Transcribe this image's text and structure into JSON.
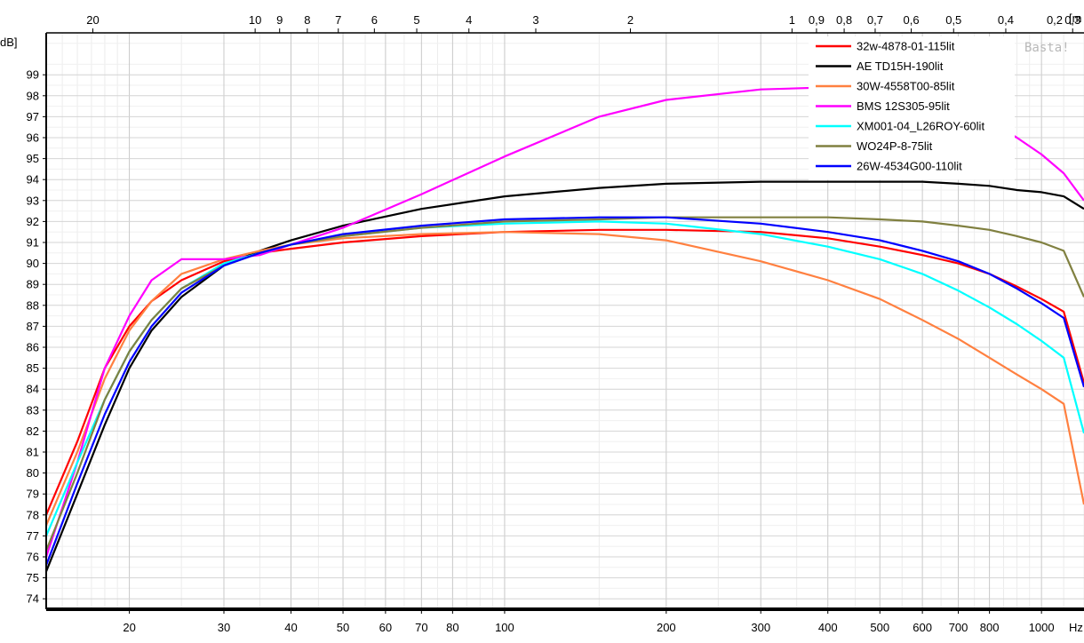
{
  "chart_data": {
    "type": "line",
    "xscale": "log",
    "xlim": [
      14,
      1200
    ],
    "ylim": [
      73.5,
      101
    ],
    "grid": true,
    "legend_position": "top-right",
    "ylabel": "dB]",
    "xlabel": "Hz",
    "top_axis_label": "[m",
    "watermark": "Basta!",
    "x_ticks": [
      20,
      30,
      40,
      50,
      60,
      70,
      80,
      100,
      200,
      300,
      400,
      500,
      600,
      700,
      800,
      1000
    ],
    "y_ticks": [
      74,
      75,
      76,
      77,
      78,
      79,
      80,
      81,
      82,
      83,
      84,
      85,
      86,
      87,
      88,
      89,
      90,
      91,
      92,
      93,
      94,
      95,
      96,
      97,
      98,
      99
    ],
    "top_ticks": [
      {
        "label": "20",
        "freq": 17.1
      },
      {
        "label": "10",
        "freq": 34.3
      },
      {
        "label": "9",
        "freq": 38.1
      },
      {
        "label": "8",
        "freq": 42.9
      },
      {
        "label": "7",
        "freq": 49
      },
      {
        "label": "6",
        "freq": 57.2
      },
      {
        "label": "5",
        "freq": 68.6
      },
      {
        "label": "4",
        "freq": 85.8
      },
      {
        "label": "3",
        "freq": 114.3
      },
      {
        "label": "2",
        "freq": 171.5
      },
      {
        "label": "1",
        "freq": 343
      },
      {
        "label": "0,9",
        "freq": 381
      },
      {
        "label": "0,8",
        "freq": 429
      },
      {
        "label": "0,7",
        "freq": 490
      },
      {
        "label": "0,6",
        "freq": 572
      },
      {
        "label": "0,5",
        "freq": 686
      },
      {
        "label": "0,4",
        "freq": 858
      },
      {
        "label": "0,3",
        "freq": 1143
      }
    ],
    "top_tick_edge": "0,2",
    "series": [
      {
        "name": "32w-4878-01-115lit",
        "color": "#ff0000",
        "points": [
          [
            14,
            78
          ],
          [
            16,
            81.5
          ],
          [
            18,
            85
          ],
          [
            20,
            87
          ],
          [
            22,
            88.2
          ],
          [
            25,
            89.2
          ],
          [
            30,
            90.1
          ],
          [
            35,
            90.5
          ],
          [
            40,
            90.7
          ],
          [
            50,
            91
          ],
          [
            70,
            91.3
          ],
          [
            100,
            91.5
          ],
          [
            150,
            91.6
          ],
          [
            200,
            91.6
          ],
          [
            300,
            91.5
          ],
          [
            400,
            91.2
          ],
          [
            500,
            90.8
          ],
          [
            600,
            90.4
          ],
          [
            700,
            90
          ],
          [
            800,
            89.5
          ],
          [
            900,
            88.9
          ],
          [
            1000,
            88.3
          ],
          [
            1100,
            87.7
          ],
          [
            1200,
            84.3
          ]
        ]
      },
      {
        "name": "AE TD15H-190lit",
        "color": "#000000",
        "points": [
          [
            14,
            75.3
          ],
          [
            16,
            79
          ],
          [
            18,
            82.3
          ],
          [
            20,
            85
          ],
          [
            22,
            86.8
          ],
          [
            25,
            88.4
          ],
          [
            30,
            89.9
          ],
          [
            35,
            90.6
          ],
          [
            40,
            91.1
          ],
          [
            50,
            91.8
          ],
          [
            70,
            92.6
          ],
          [
            100,
            93.2
          ],
          [
            150,
            93.6
          ],
          [
            200,
            93.8
          ],
          [
            300,
            93.9
          ],
          [
            400,
            93.9
          ],
          [
            500,
            93.9
          ],
          [
            600,
            93.9
          ],
          [
            700,
            93.8
          ],
          [
            800,
            93.7
          ],
          [
            900,
            93.5
          ],
          [
            1000,
            93.4
          ],
          [
            1100,
            93.2
          ],
          [
            1200,
            92.6
          ]
        ]
      },
      {
        "name": "30W-4558T00-85lit",
        "color": "#ff8040",
        "points": [
          [
            14,
            77.5
          ],
          [
            16,
            81
          ],
          [
            18,
            84.5
          ],
          [
            20,
            86.8
          ],
          [
            22,
            88.2
          ],
          [
            25,
            89.5
          ],
          [
            30,
            90.2
          ],
          [
            35,
            90.6
          ],
          [
            40,
            90.9
          ],
          [
            50,
            91.2
          ],
          [
            70,
            91.4
          ],
          [
            100,
            91.5
          ],
          [
            150,
            91.4
          ],
          [
            200,
            91.1
          ],
          [
            300,
            90.1
          ],
          [
            400,
            89.2
          ],
          [
            500,
            88.3
          ],
          [
            600,
            87.3
          ],
          [
            700,
            86.4
          ],
          [
            800,
            85.5
          ],
          [
            900,
            84.7
          ],
          [
            1000,
            84
          ],
          [
            1100,
            83.3
          ],
          [
            1200,
            78.5
          ]
        ]
      },
      {
        "name": "BMS 12S305-95lit",
        "color": "#ff00ff",
        "points": [
          [
            14,
            76
          ],
          [
            16,
            80.5
          ],
          [
            18,
            85
          ],
          [
            20,
            87.5
          ],
          [
            22,
            89.2
          ],
          [
            25,
            90.2
          ],
          [
            28,
            90.2
          ],
          [
            30,
            90.2
          ],
          [
            35,
            90.4
          ],
          [
            40,
            90.9
          ],
          [
            50,
            91.7
          ],
          [
            70,
            93.3
          ],
          [
            100,
            95.1
          ],
          [
            150,
            97
          ],
          [
            200,
            97.8
          ],
          [
            300,
            98.3
          ],
          [
            400,
            98.4
          ],
          [
            500,
            98.3
          ],
          [
            600,
            98
          ],
          [
            700,
            97.5
          ],
          [
            800,
            96.8
          ],
          [
            900,
            96
          ],
          [
            1000,
            95.2
          ],
          [
            1100,
            94.3
          ],
          [
            1200,
            93
          ]
        ]
      },
      {
        "name": "XM001-04_L26ROY-60lit",
        "color": "#00ffff",
        "points": [
          [
            14,
            77
          ],
          [
            16,
            80.5
          ],
          [
            18,
            83.5
          ],
          [
            20,
            85.8
          ],
          [
            22,
            87.3
          ],
          [
            25,
            88.8
          ],
          [
            30,
            90
          ],
          [
            35,
            90.5
          ],
          [
            40,
            90.9
          ],
          [
            50,
            91.3
          ],
          [
            70,
            91.7
          ],
          [
            100,
            91.9
          ],
          [
            150,
            92
          ],
          [
            200,
            91.9
          ],
          [
            300,
            91.4
          ],
          [
            400,
            90.8
          ],
          [
            500,
            90.2
          ],
          [
            600,
            89.5
          ],
          [
            700,
            88.7
          ],
          [
            800,
            87.9
          ],
          [
            900,
            87.1
          ],
          [
            1000,
            86.3
          ],
          [
            1100,
            85.5
          ],
          [
            1200,
            81.9
          ]
        ]
      },
      {
        "name": "WO24P-8-75lit",
        "color": "#808040",
        "points": [
          [
            14,
            76.3
          ],
          [
            16,
            80
          ],
          [
            18,
            83.5
          ],
          [
            20,
            85.8
          ],
          [
            22,
            87.3
          ],
          [
            25,
            88.8
          ],
          [
            30,
            89.9
          ],
          [
            35,
            90.5
          ],
          [
            40,
            90.9
          ],
          [
            50,
            91.3
          ],
          [
            70,
            91.7
          ],
          [
            100,
            92
          ],
          [
            150,
            92.1
          ],
          [
            200,
            92.2
          ],
          [
            300,
            92.2
          ],
          [
            400,
            92.2
          ],
          [
            500,
            92.1
          ],
          [
            600,
            92
          ],
          [
            700,
            91.8
          ],
          [
            800,
            91.6
          ],
          [
            900,
            91.3
          ],
          [
            1000,
            91
          ],
          [
            1100,
            90.6
          ],
          [
            1200,
            88.4
          ]
        ]
      },
      {
        "name": "26W-4534G00-110lit",
        "color": "#0000ff",
        "points": [
          [
            14,
            75.6
          ],
          [
            16,
            79.5
          ],
          [
            18,
            82.8
          ],
          [
            20,
            85.3
          ],
          [
            22,
            87
          ],
          [
            25,
            88.6
          ],
          [
            30,
            89.9
          ],
          [
            35,
            90.5
          ],
          [
            40,
            90.9
          ],
          [
            50,
            91.4
          ],
          [
            70,
            91.8
          ],
          [
            100,
            92.1
          ],
          [
            150,
            92.2
          ],
          [
            200,
            92.2
          ],
          [
            300,
            91.9
          ],
          [
            400,
            91.5
          ],
          [
            500,
            91.1
          ],
          [
            600,
            90.6
          ],
          [
            700,
            90.1
          ],
          [
            800,
            89.5
          ],
          [
            900,
            88.8
          ],
          [
            1000,
            88.1
          ],
          [
            1100,
            87.4
          ],
          [
            1200,
            84.1
          ]
        ]
      }
    ]
  }
}
